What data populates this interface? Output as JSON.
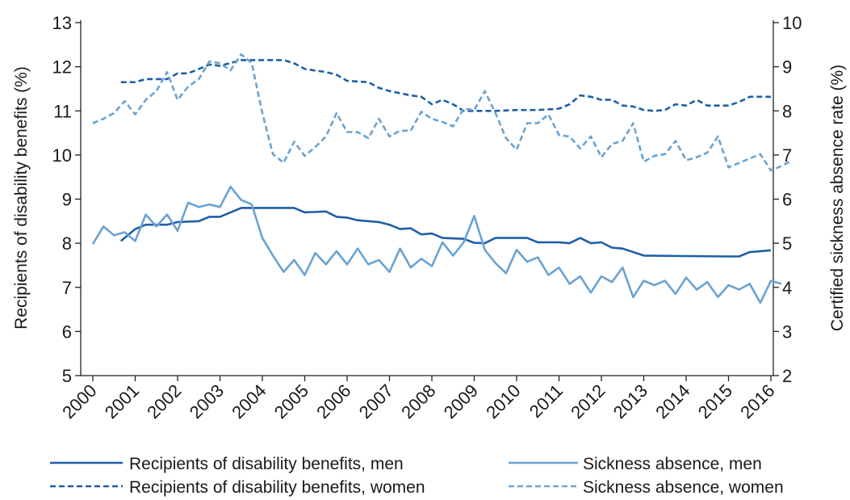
{
  "chart_data": {
    "type": "line",
    "y_left": {
      "label": "Recipients of disability benefits (%)",
      "range": [
        5,
        13
      ],
      "ticks": [
        5,
        6,
        7,
        8,
        9,
        10,
        11,
        12,
        13
      ]
    },
    "y_right": {
      "label": "Certified sickness absence rate (%)",
      "range": [
        2,
        10
      ],
      "ticks": [
        2,
        3,
        4,
        5,
        6,
        7,
        8,
        9,
        10
      ]
    },
    "x": {
      "range": [
        2000,
        2016
      ],
      "tick_labels": [
        "2000",
        "2001",
        "2002",
        "2003",
        "2004",
        "2005",
        "2006",
        "2007",
        "2008",
        "2009",
        "2010",
        "2011",
        "2012",
        "2013",
        "2014",
        "2015",
        "2016"
      ]
    },
    "grid": false,
    "legend_position": "bottom",
    "series": [
      {
        "name": "Recipients of disability benefits, men",
        "axis": "left",
        "style": "solid",
        "color": "#1f5fa6",
        "points": [
          [
            2000.66,
            8.05
          ],
          [
            2001.0,
            8.32
          ],
          [
            2001.25,
            8.42
          ],
          [
            2001.75,
            8.42
          ],
          [
            2002.0,
            8.48
          ],
          [
            2002.5,
            8.5
          ],
          [
            2002.75,
            8.6
          ],
          [
            2003.0,
            8.6
          ],
          [
            2003.5,
            8.8
          ],
          [
            2004.0,
            8.8
          ],
          [
            2004.75,
            8.8
          ],
          [
            2005.0,
            8.7
          ],
          [
            2005.5,
            8.72
          ],
          [
            2005.75,
            8.6
          ],
          [
            2006.0,
            8.58
          ],
          [
            2006.25,
            8.52
          ],
          [
            2006.75,
            8.48
          ],
          [
            2007.0,
            8.42
          ],
          [
            2007.25,
            8.32
          ],
          [
            2007.5,
            8.34
          ],
          [
            2007.75,
            8.2
          ],
          [
            2008.0,
            8.22
          ],
          [
            2008.25,
            8.12
          ],
          [
            2008.75,
            8.1
          ],
          [
            2009.0,
            8.01
          ],
          [
            2009.25,
            8.0
          ],
          [
            2009.5,
            8.12
          ],
          [
            2010.0,
            8.12
          ],
          [
            2010.25,
            8.12
          ],
          [
            2010.5,
            8.02
          ],
          [
            2011.0,
            8.02
          ],
          [
            2011.25,
            8.0
          ],
          [
            2011.5,
            8.12
          ],
          [
            2011.75,
            8.0
          ],
          [
            2012.0,
            8.02
          ],
          [
            2012.25,
            7.9
          ],
          [
            2012.5,
            7.88
          ],
          [
            2013.0,
            7.72
          ],
          [
            2014.0,
            7.71
          ],
          [
            2015.0,
            7.7
          ],
          [
            2015.25,
            7.7
          ],
          [
            2015.5,
            7.8
          ],
          [
            2016.0,
            7.84
          ]
        ]
      },
      {
        "name": "Recipients of disability benefits, women",
        "axis": "left",
        "style": "dashed",
        "color": "#1f5fa6",
        "points": [
          [
            2000.66,
            11.65
          ],
          [
            2001.0,
            11.65
          ],
          [
            2001.25,
            11.72
          ],
          [
            2001.5,
            11.72
          ],
          [
            2001.75,
            11.72
          ],
          [
            2002.0,
            11.85
          ],
          [
            2002.25,
            11.85
          ],
          [
            2002.5,
            11.95
          ],
          [
            2002.75,
            12.05
          ],
          [
            2003.0,
            12.02
          ],
          [
            2003.5,
            12.15
          ],
          [
            2004.0,
            12.15
          ],
          [
            2004.5,
            12.15
          ],
          [
            2004.75,
            12.08
          ],
          [
            2005.0,
            11.95
          ],
          [
            2005.5,
            11.88
          ],
          [
            2005.75,
            11.82
          ],
          [
            2006.0,
            11.68
          ],
          [
            2006.5,
            11.65
          ],
          [
            2006.75,
            11.52
          ],
          [
            2007.0,
            11.45
          ],
          [
            2007.5,
            11.35
          ],
          [
            2007.75,
            11.32
          ],
          [
            2008.0,
            11.15
          ],
          [
            2008.25,
            11.25
          ],
          [
            2008.5,
            11.15
          ],
          [
            2008.75,
            11.0
          ],
          [
            2009.0,
            11.0
          ],
          [
            2009.5,
            11.0
          ],
          [
            2010.0,
            11.02
          ],
          [
            2010.5,
            11.02
          ],
          [
            2011.0,
            11.05
          ],
          [
            2011.25,
            11.15
          ],
          [
            2011.5,
            11.35
          ],
          [
            2011.75,
            11.32
          ],
          [
            2012.0,
            11.25
          ],
          [
            2012.25,
            11.25
          ],
          [
            2012.5,
            11.12
          ],
          [
            2012.75,
            11.1
          ],
          [
            2013.0,
            11.02
          ],
          [
            2013.25,
            11.0
          ],
          [
            2013.5,
            11.02
          ],
          [
            2013.75,
            11.15
          ],
          [
            2014.0,
            11.12
          ],
          [
            2014.25,
            11.25
          ],
          [
            2014.5,
            11.12
          ],
          [
            2014.75,
            11.12
          ],
          [
            2015.0,
            11.12
          ],
          [
            2015.25,
            11.2
          ],
          [
            2015.5,
            11.32
          ],
          [
            2016.0,
            11.32
          ]
        ]
      },
      {
        "name": "Sickness absence, men",
        "axis": "right",
        "style": "solid",
        "color": "#6aa3d2",
        "points": [
          [
            2000.0,
            4.98
          ],
          [
            2000.25,
            5.38
          ],
          [
            2000.5,
            5.18
          ],
          [
            2000.75,
            5.25
          ],
          [
            2001.0,
            5.05
          ],
          [
            2001.25,
            5.65
          ],
          [
            2001.5,
            5.38
          ],
          [
            2001.75,
            5.65
          ],
          [
            2002.0,
            5.28
          ],
          [
            2002.25,
            5.92
          ],
          [
            2002.5,
            5.82
          ],
          [
            2002.75,
            5.88
          ],
          [
            2003.0,
            5.82
          ],
          [
            2003.25,
            6.28
          ],
          [
            2003.5,
            5.98
          ],
          [
            2003.75,
            5.88
          ],
          [
            2004.0,
            5.12
          ],
          [
            2004.25,
            4.72
          ],
          [
            2004.5,
            4.35
          ],
          [
            2004.75,
            4.62
          ],
          [
            2005.0,
            4.28
          ],
          [
            2005.25,
            4.78
          ],
          [
            2005.5,
            4.52
          ],
          [
            2005.75,
            4.82
          ],
          [
            2006.0,
            4.52
          ],
          [
            2006.25,
            4.88
          ],
          [
            2006.5,
            4.52
          ],
          [
            2006.75,
            4.62
          ],
          [
            2007.0,
            4.35
          ],
          [
            2007.25,
            4.88
          ],
          [
            2007.5,
            4.45
          ],
          [
            2007.75,
            4.65
          ],
          [
            2008.0,
            4.48
          ],
          [
            2008.25,
            5.02
          ],
          [
            2008.5,
            4.72
          ],
          [
            2008.75,
            5.02
          ],
          [
            2009.0,
            5.62
          ],
          [
            2009.25,
            4.85
          ],
          [
            2009.5,
            4.55
          ],
          [
            2009.75,
            4.32
          ],
          [
            2010.0,
            4.85
          ],
          [
            2010.25,
            4.58
          ],
          [
            2010.5,
            4.68
          ],
          [
            2010.75,
            4.28
          ],
          [
            2011.0,
            4.45
          ],
          [
            2011.25,
            4.08
          ],
          [
            2011.5,
            4.25
          ],
          [
            2011.75,
            3.88
          ],
          [
            2012.0,
            4.25
          ],
          [
            2012.25,
            4.12
          ],
          [
            2012.5,
            4.45
          ],
          [
            2012.75,
            3.78
          ],
          [
            2013.0,
            4.15
          ],
          [
            2013.25,
            4.05
          ],
          [
            2013.5,
            4.15
          ],
          [
            2013.75,
            3.85
          ],
          [
            2014.0,
            4.22
          ],
          [
            2014.25,
            3.95
          ],
          [
            2014.5,
            4.12
          ],
          [
            2014.75,
            3.78
          ],
          [
            2015.0,
            4.05
          ],
          [
            2015.25,
            3.95
          ],
          [
            2015.5,
            4.08
          ],
          [
            2015.75,
            3.65
          ],
          [
            2016.0,
            4.15
          ],
          [
            2016.25,
            4.08
          ]
        ]
      },
      {
        "name": "Sickness absence, women",
        "axis": "right",
        "style": "dashed",
        "color": "#6aa3d2",
        "points": [
          [
            2000.0,
            7.72
          ],
          [
            2000.25,
            7.82
          ],
          [
            2000.5,
            7.95
          ],
          [
            2000.75,
            8.22
          ],
          [
            2001.0,
            7.92
          ],
          [
            2001.25,
            8.25
          ],
          [
            2001.5,
            8.45
          ],
          [
            2001.75,
            8.88
          ],
          [
            2002.0,
            8.25
          ],
          [
            2002.25,
            8.55
          ],
          [
            2002.5,
            8.72
          ],
          [
            2002.75,
            9.12
          ],
          [
            2003.0,
            9.08
          ],
          [
            2003.25,
            8.92
          ],
          [
            2003.5,
            9.28
          ],
          [
            2003.75,
            9.08
          ],
          [
            2004.0,
            7.95
          ],
          [
            2004.25,
            7.02
          ],
          [
            2004.5,
            6.82
          ],
          [
            2004.75,
            7.3
          ],
          [
            2005.0,
            6.98
          ],
          [
            2005.25,
            7.18
          ],
          [
            2005.5,
            7.42
          ],
          [
            2005.75,
            7.95
          ],
          [
            2006.0,
            7.52
          ],
          [
            2006.25,
            7.52
          ],
          [
            2006.5,
            7.38
          ],
          [
            2006.75,
            7.82
          ],
          [
            2007.0,
            7.42
          ],
          [
            2007.25,
            7.55
          ],
          [
            2007.5,
            7.55
          ],
          [
            2007.75,
            7.98
          ],
          [
            2008.0,
            7.82
          ],
          [
            2008.25,
            7.75
          ],
          [
            2008.5,
            7.65
          ],
          [
            2008.75,
            8.05
          ],
          [
            2009.0,
            8.02
          ],
          [
            2009.25,
            8.45
          ],
          [
            2009.5,
            7.95
          ],
          [
            2009.75,
            7.38
          ],
          [
            2010.0,
            7.12
          ],
          [
            2010.25,
            7.72
          ],
          [
            2010.5,
            7.72
          ],
          [
            2010.75,
            7.92
          ],
          [
            2011.0,
            7.45
          ],
          [
            2011.25,
            7.42
          ],
          [
            2011.5,
            7.15
          ],
          [
            2011.75,
            7.42
          ],
          [
            2012.0,
            6.95
          ],
          [
            2012.25,
            7.25
          ],
          [
            2012.5,
            7.32
          ],
          [
            2012.75,
            7.72
          ],
          [
            2013.0,
            6.85
          ],
          [
            2013.25,
            6.98
          ],
          [
            2013.5,
            7.02
          ],
          [
            2013.75,
            7.32
          ],
          [
            2014.0,
            6.88
          ],
          [
            2014.25,
            6.95
          ],
          [
            2014.5,
            7.05
          ],
          [
            2014.75,
            7.42
          ],
          [
            2015.0,
            6.72
          ],
          [
            2015.25,
            6.82
          ],
          [
            2015.5,
            6.92
          ],
          [
            2015.75,
            7.02
          ],
          [
            2016.0,
            6.65
          ],
          [
            2016.25,
            6.75
          ],
          [
            2016.5,
            6.88
          ]
        ]
      }
    ]
  }
}
